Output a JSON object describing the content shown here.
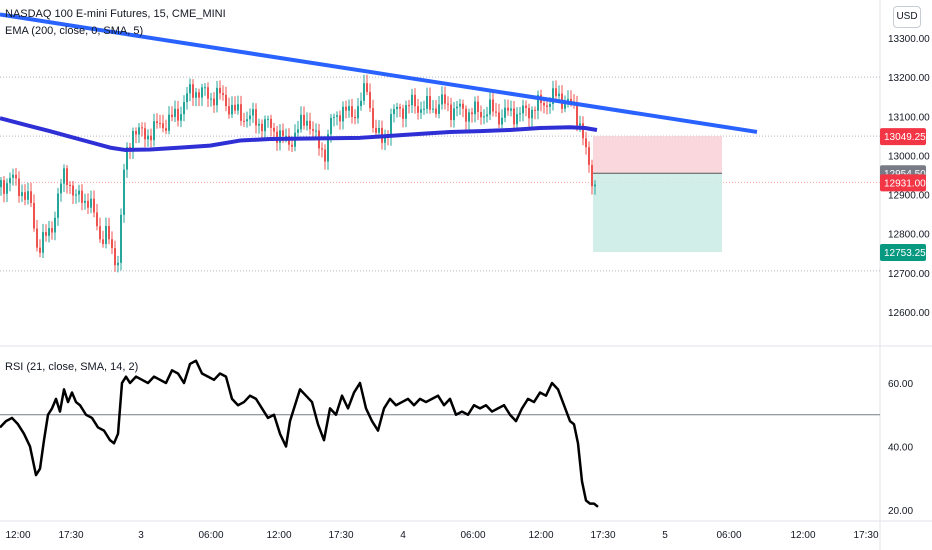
{
  "header": {
    "symbol_title": "NASDAQ 100 E-mini Futures, 15, CME_MINI",
    "ema_label": "EMA (200, close, 0, SMA, 5)",
    "rsi_label": "RSI (21, close, SMA, 14, 2)",
    "currency": "USD"
  },
  "colors": {
    "up": "#26a69a",
    "down": "#ef5350",
    "ema": "#2f2fd6",
    "trendline": "#2962ff",
    "rsi": "#000000",
    "stop_zone": "#f8d0d6",
    "target_zone": "#c9ebe4"
  },
  "chart_data": [
    {
      "type": "candlestick",
      "title": "NASDAQ 100 E-mini Futures, 15, CME_MINI",
      "x_ticks": [
        "12:00",
        "17:30",
        "3",
        "06:00",
        "12:00",
        "17:30",
        "4",
        "06:00",
        "12:00",
        "17:30",
        "5",
        "06:00",
        "12:00",
        "17:30"
      ],
      "y_ticks": [
        13300.0,
        13200.0,
        13100.0,
        13000.0,
        12900.0,
        12800.0,
        12700.0,
        12600.0
      ],
      "ylim": [
        12560,
        13370
      ],
      "ylabel": "USD",
      "series": [
        {
          "name": "EMA (200, close, 0, SMA, 5)",
          "type": "line",
          "points": [
            [
              0,
              13095
            ],
            [
              30,
              13075
            ],
            [
              50,
              13062
            ],
            [
              70,
              13048
            ],
            [
              90,
              13034
            ],
            [
              110,
              13020
            ],
            [
              125,
              13014
            ],
            [
              150,
              13015
            ],
            [
              180,
              13020
            ],
            [
              210,
              13025
            ],
            [
              240,
              13038
            ],
            [
              270,
              13042
            ],
            [
              300,
              13043
            ],
            [
              330,
              13044
            ],
            [
              360,
              13045
            ],
            [
              390,
              13050
            ],
            [
              420,
              13055
            ],
            [
              450,
              13060
            ],
            [
              480,
              13062
            ],
            [
              510,
              13065
            ],
            [
              540,
              13070
            ],
            [
              570,
              13072
            ],
            [
              585,
              13070
            ],
            [
              597,
              13065
            ]
          ]
        },
        {
          "name": "Trendline",
          "type": "line",
          "points": [
            [
              0,
              13360
            ],
            [
              757,
              13060
            ]
          ]
        },
        {
          "name": "Price",
          "type": "close_path",
          "points": [
            [
              0,
              12925
            ],
            [
              10,
              12940
            ],
            [
              20,
              12915
            ],
            [
              30,
              12870
            ],
            [
              37,
              12760
            ],
            [
              45,
              12790
            ],
            [
              52,
              12830
            ],
            [
              58,
              12900
            ],
            [
              64,
              12960
            ],
            [
              68,
              12940
            ],
            [
              74,
              12880
            ],
            [
              80,
              12900
            ],
            [
              88,
              12880
            ],
            [
              95,
              12830
            ],
            [
              100,
              12790
            ],
            [
              106,
              12800
            ],
            [
              112,
              12740
            ],
            [
              118,
              12740
            ],
            [
              122,
              12940
            ],
            [
              126,
              13000
            ],
            [
              132,
              13070
            ],
            [
              140,
              13050
            ],
            [
              150,
              13060
            ],
            [
              160,
              13080
            ],
            [
              170,
              13090
            ],
            [
              178,
              13110
            ],
            [
              186,
              13150
            ],
            [
              194,
              13170
            ],
            [
              200,
              13160
            ],
            [
              208,
              13150
            ],
            [
              216,
              13155
            ],
            [
              224,
              13140
            ],
            [
              234,
              13110
            ],
            [
              244,
              13100
            ],
            [
              254,
              13090
            ],
            [
              264,
              13080
            ],
            [
              276,
              13060
            ],
            [
              286,
              13030
            ],
            [
              296,
              13060
            ],
            [
              306,
              13100
            ],
            [
              316,
              13030
            ],
            [
              324,
              13010
            ],
            [
              330,
              13080
            ],
            [
              340,
              13120
            ],
            [
              350,
              13100
            ],
            [
              360,
              13140
            ],
            [
              366,
              13170
            ],
            [
              374,
              13060
            ],
            [
              382,
              13030
            ],
            [
              390,
              13100
            ],
            [
              400,
              13120
            ],
            [
              410,
              13130
            ],
            [
              420,
              13125
            ],
            [
              430,
              13120
            ],
            [
              440,
              13135
            ],
            [
              450,
              13120
            ],
            [
              460,
              13115
            ],
            [
              470,
              13110
            ],
            [
              480,
              13110
            ],
            [
              490,
              13115
            ],
            [
              500,
              13100
            ],
            [
              510,
              13110
            ],
            [
              520,
              13105
            ],
            [
              530,
              13120
            ],
            [
              540,
              13130
            ],
            [
              550,
              13145
            ],
            [
              558,
              13150
            ],
            [
              566,
              13135
            ],
            [
              574,
              13115
            ],
            [
              580,
              13080
            ],
            [
              585,
              13000
            ],
            [
              590,
              12940
            ],
            [
              595,
              12931
            ]
          ]
        }
      ],
      "price_labels": [
        {
          "value": "13049.25",
          "color": "#f23645"
        },
        {
          "value": "12954.50",
          "color": "#787b86"
        },
        {
          "value": "12931.00",
          "color": "#f23645"
        },
        {
          "value": "12753.25",
          "color": "#089981"
        }
      ],
      "position_tool": {
        "stop": 13049.25,
        "entry": 12954.5,
        "target": 12753.25
      },
      "horizontal_dotted_levels": [
        13200.0,
        13049.25,
        12931.0,
        12705.0
      ]
    },
    {
      "type": "line",
      "title": "RSI (21, close, SMA, 14, 2)",
      "y_ticks": [
        60.0,
        40.0,
        20.0
      ],
      "ylim": [
        17,
        72
      ],
      "reference_level": 50,
      "series": [
        {
          "name": "RSI",
          "points": [
            [
              0,
              46
            ],
            [
              6,
              48
            ],
            [
              12,
              49
            ],
            [
              18,
              47
            ],
            [
              24,
              44
            ],
            [
              30,
              40
            ],
            [
              36,
              31
            ],
            [
              40,
              33
            ],
            [
              44,
              42
            ],
            [
              48,
              50
            ],
            [
              52,
              52
            ],
            [
              56,
              55
            ],
            [
              60,
              51
            ],
            [
              64,
              58
            ],
            [
              68,
              54
            ],
            [
              72,
              57
            ],
            [
              76,
              54
            ],
            [
              80,
              53
            ],
            [
              86,
              50
            ],
            [
              92,
              49
            ],
            [
              98,
              46
            ],
            [
              104,
              45
            ],
            [
              110,
              42
            ],
            [
              114,
              41
            ],
            [
              118,
              44
            ],
            [
              122,
              60
            ],
            [
              126,
              62
            ],
            [
              130,
              60
            ],
            [
              136,
              62
            ],
            [
              142,
              61
            ],
            [
              148,
              60
            ],
            [
              154,
              62
            ],
            [
              160,
              61
            ],
            [
              166,
              60
            ],
            [
              172,
              64
            ],
            [
              178,
              63
            ],
            [
              184,
              60
            ],
            [
              190,
              66
            ],
            [
              196,
              67
            ],
            [
              202,
              63
            ],
            [
              208,
              62
            ],
            [
              214,
              61
            ],
            [
              220,
              63
            ],
            [
              226,
              62
            ],
            [
              232,
              55
            ],
            [
              238,
              53
            ],
            [
              244,
              54
            ],
            [
              250,
              56
            ],
            [
              256,
              55
            ],
            [
              262,
              52
            ],
            [
              268,
              49
            ],
            [
              274,
              50
            ],
            [
              280,
              44
            ],
            [
              286,
              40
            ],
            [
              290,
              48
            ],
            [
              296,
              54
            ],
            [
              300,
              58
            ],
            [
              306,
              56
            ],
            [
              312,
              54
            ],
            [
              318,
              47
            ],
            [
              324,
              42
            ],
            [
              330,
              52
            ],
            [
              336,
              50
            ],
            [
              342,
              56
            ],
            [
              348,
              52
            ],
            [
              354,
              57
            ],
            [
              360,
              60
            ],
            [
              366,
              52
            ],
            [
              372,
              48
            ],
            [
              378,
              45
            ],
            [
              384,
              52
            ],
            [
              390,
              55
            ],
            [
              396,
              53
            ],
            [
              402,
              54
            ],
            [
              408,
              55
            ],
            [
              414,
              53
            ],
            [
              420,
              55
            ],
            [
              426,
              54
            ],
            [
              432,
              55
            ],
            [
              438,
              56
            ],
            [
              444,
              53
            ],
            [
              450,
              55
            ],
            [
              456,
              50
            ],
            [
              462,
              51
            ],
            [
              468,
              50
            ],
            [
              474,
              53
            ],
            [
              480,
              52
            ],
            [
              486,
              53
            ],
            [
              492,
              51
            ],
            [
              498,
              52
            ],
            [
              504,
              53
            ],
            [
              510,
              50
            ],
            [
              516,
              48
            ],
            [
              522,
              52
            ],
            [
              528,
              55
            ],
            [
              534,
              54
            ],
            [
              540,
              57
            ],
            [
              546,
              56
            ],
            [
              552,
              60
            ],
            [
              558,
              58
            ],
            [
              564,
              53
            ],
            [
              570,
              48
            ],
            [
              574,
              47
            ],
            [
              578,
              41
            ],
            [
              582,
              29
            ],
            [
              586,
              23
            ],
            [
              590,
              22
            ],
            [
              594,
              22
            ],
            [
              598,
              21
            ]
          ]
        }
      ]
    }
  ]
}
